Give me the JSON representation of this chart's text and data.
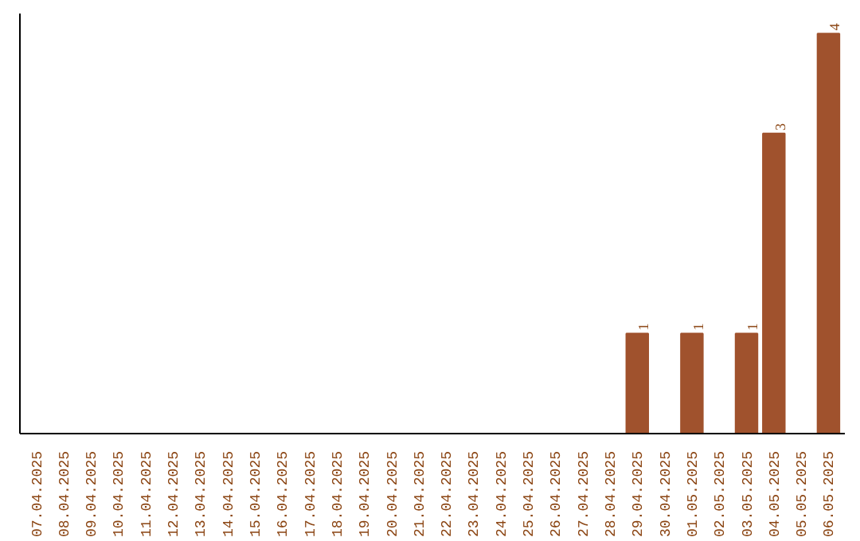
{
  "chart_data": {
    "type": "bar",
    "categories": [
      "07.04.2025",
      "08.04.2025",
      "09.04.2025",
      "10.04.2025",
      "11.04.2025",
      "12.04.2025",
      "13.04.2025",
      "14.04.2025",
      "15.04.2025",
      "16.04.2025",
      "17.04.2025",
      "18.04.2025",
      "19.04.2025",
      "20.04.2025",
      "21.04.2025",
      "22.04.2025",
      "23.04.2025",
      "24.04.2025",
      "25.04.2025",
      "26.04.2025",
      "27.04.2025",
      "28.04.2025",
      "29.04.2025",
      "30.04.2025",
      "01.05.2025",
      "02.05.2025",
      "03.05.2025",
      "04.05.2025",
      "05.05.2025",
      "06.05.2025"
    ],
    "values": [
      null,
      null,
      null,
      null,
      null,
      null,
      null,
      null,
      null,
      null,
      null,
      null,
      null,
      null,
      null,
      null,
      null,
      null,
      null,
      null,
      null,
      null,
      1,
      null,
      1,
      null,
      1,
      3,
      null,
      4
    ],
    "value_labels": [
      null,
      null,
      null,
      null,
      null,
      null,
      null,
      null,
      null,
      null,
      null,
      null,
      null,
      null,
      null,
      null,
      null,
      null,
      null,
      null,
      null,
      null,
      "1",
      null,
      "1",
      null,
      "1",
      "3",
      null,
      "4"
    ],
    "color": "#a0522d",
    "grid": false
  }
}
